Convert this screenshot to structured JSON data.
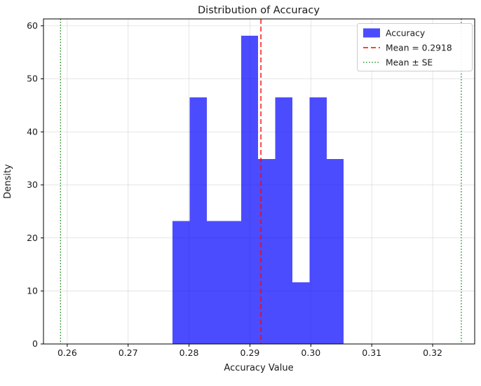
{
  "chart_data": {
    "type": "histogram",
    "title": "Distribution of Accuracy",
    "xlabel": "Accuracy Value",
    "ylabel": "Density",
    "xlim": [
      0.2561,
      0.3269
    ],
    "ylim": [
      0,
      61.3
    ],
    "xticks": [
      {
        "v": 0.26,
        "label": "0.26"
      },
      {
        "v": 0.27,
        "label": "0.27"
      },
      {
        "v": 0.28,
        "label": "0.28"
      },
      {
        "v": 0.29,
        "label": "0.29"
      },
      {
        "v": 0.3,
        "label": "0.30"
      },
      {
        "v": 0.31,
        "label": "0.31"
      },
      {
        "v": 0.32,
        "label": "0.32"
      }
    ],
    "yticks": [
      {
        "v": 0,
        "label": "0"
      },
      {
        "v": 10,
        "label": "10"
      },
      {
        "v": 20,
        "label": "20"
      },
      {
        "v": 30,
        "label": "30"
      },
      {
        "v": 40,
        "label": "40"
      },
      {
        "v": 50,
        "label": "50"
      },
      {
        "v": 60,
        "label": "60"
      }
    ],
    "bins": {
      "start": 0.2773,
      "width": 0.00281,
      "densities": [
        23.2,
        46.5,
        23.2,
        23.2,
        58.1,
        34.9,
        46.5,
        11.6,
        46.5,
        34.9
      ]
    },
    "mean_line": {
      "value": 0.2918,
      "color": "#ff0000",
      "style": "dashed"
    },
    "se_lines": {
      "values": [
        0.2589,
        0.3247
      ],
      "color": "#008000",
      "style": "dotted"
    },
    "bar_alpha": 0.7,
    "grid": true,
    "legend_position": "upper right",
    "colors": {
      "bar": "#0000ff",
      "mean": "#ff0000",
      "se": "#008000",
      "grid": "#b0b0b0",
      "spine": "#000000",
      "legend_border": "#cccccc"
    },
    "legend": {
      "items": [
        {
          "type": "patch",
          "label": "Accuracy"
        },
        {
          "type": "dashed-line",
          "label": "Mean = 0.2918"
        },
        {
          "type": "dotted-line",
          "label": "Mean ± SE"
        }
      ]
    }
  }
}
